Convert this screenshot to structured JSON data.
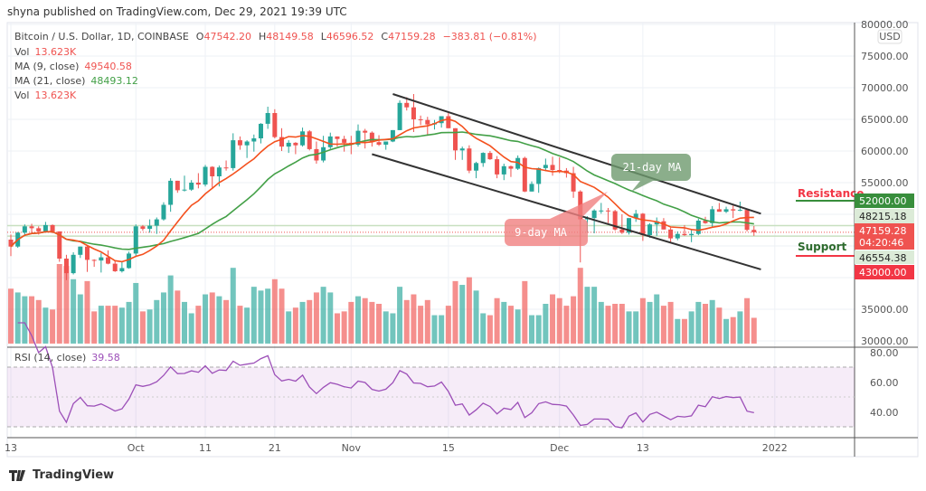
{
  "header": {
    "published": "shyna published on TradingView.com, Dec 29, 2021 19:39 UTC"
  },
  "legend": {
    "symbol": "Bitcoin / U.S. Dollar, 1D, COINBASE",
    "o_label": "O",
    "o": "47542.20",
    "h_label": "H",
    "h": "48149.58",
    "l_label": "L",
    "l": "46596.52",
    "c_label": "C",
    "c": "47159.28",
    "change": "−383.81 (−0.81%)",
    "vol_label": "Vol",
    "vol": "13.623K",
    "ma9_label": "MA (9, close)",
    "ma9": "49540.58",
    "ma21_label": "MA (21, close)",
    "ma21": "48493.12",
    "vol2_label": "Vol",
    "vol2": "13.623K",
    "rsi_label": "RSI (14, close)",
    "rsi": "39.58"
  },
  "annotations": {
    "ma21_callout": "21-day MA",
    "ma9_callout": "9-day MA",
    "resistance": "Resistance",
    "support": "Support"
  },
  "price_axis": {
    "currency": "USD",
    "ticks": [
      "80000.00",
      "75000.00",
      "70000.00",
      "65000.00",
      "60000.00",
      "55000.00",
      "35000.00",
      "30000.00"
    ],
    "badges": {
      "resistance": "52000.00",
      "upper_line": "48215.18",
      "last": "47159.28",
      "countdown": "04:20:46",
      "lower_line": "46554.38",
      "support": "43000.00"
    }
  },
  "rsi_axis": {
    "ticks": [
      "80.00",
      "60.00",
      "40.00"
    ]
  },
  "time_axis": {
    "ticks": [
      "13",
      "Oct",
      "11",
      "21",
      "Nov",
      "15",
      "Dec",
      "13",
      "2022"
    ]
  },
  "footer": {
    "brand": "TradingView"
  },
  "colors": {
    "up": "#26a69a",
    "down": "#ef5350",
    "ma9": "#f4511e",
    "ma21": "#43a047",
    "rsi": "#9c4fb8",
    "resistance_badge": "#388e3c",
    "support_badge": "#f23645"
  },
  "chart_data": {
    "type": "candlestick",
    "title": "Bitcoin / U.S. Dollar, 1D, COINBASE",
    "ylabel": "USD",
    "ylim": [
      30000,
      80000
    ],
    "grid": true,
    "levels": {
      "resistance": 52000,
      "support": 43000,
      "upper_line": 48215.18,
      "lower_line": 46554.38,
      "last": 47159.28
    },
    "columns": [
      "date",
      "open",
      "high",
      "low",
      "close",
      "volume_k"
    ],
    "candles": [
      [
        "Sep 13",
        46000,
        46800,
        43400,
        44900,
        29
      ],
      [
        "Sep 14",
        44900,
        47200,
        44700,
        47100,
        27
      ],
      [
        "Sep 15",
        47100,
        48400,
        46700,
        48100,
        25
      ],
      [
        "Sep 16",
        48100,
        48500,
        47000,
        47800,
        25
      ],
      [
        "Sep 17",
        47800,
        48100,
        46800,
        47300,
        23
      ],
      [
        "Sep 18",
        47300,
        48800,
        47100,
        48300,
        19
      ],
      [
        "Sep 19",
        48300,
        48400,
        47000,
        47300,
        18
      ],
      [
        "Sep 20",
        47300,
        47300,
        42500,
        43000,
        42
      ],
      [
        "Sep 21",
        43000,
        43600,
        39600,
        40700,
        41
      ],
      [
        "Sep 22",
        40700,
        44000,
        40500,
        43600,
        34
      ],
      [
        "Sep 23",
        43600,
        44900,
        43100,
        44900,
        26
      ],
      [
        "Sep 24",
        44900,
        45100,
        40900,
        42800,
        33
      ],
      [
        "Sep 25",
        42800,
        42900,
        41700,
        42700,
        17
      ],
      [
        "Sep 26",
        42700,
        43900,
        40800,
        43200,
        20
      ],
      [
        "Sep 27",
        43200,
        44300,
        42100,
        42200,
        20
      ],
      [
        "Sep 28",
        42200,
        42700,
        40900,
        41000,
        20
      ],
      [
        "Sep 29",
        41000,
        42600,
        40800,
        41500,
        19
      ],
      [
        "Sep 30",
        41500,
        44100,
        41400,
        43800,
        22
      ],
      [
        "Oct 1",
        43800,
        48400,
        43300,
        48100,
        32
      ],
      [
        "Oct 2",
        48100,
        48300,
        47400,
        47700,
        17
      ],
      [
        "Oct 3",
        47700,
        49200,
        47100,
        48200,
        18
      ],
      [
        "Oct 4",
        48200,
        49500,
        46900,
        49200,
        23
      ],
      [
        "Oct 5",
        49200,
        51900,
        49000,
        51500,
        27
      ],
      [
        "Oct 6",
        51500,
        55700,
        50400,
        55300,
        36
      ],
      [
        "Oct 7",
        55300,
        55300,
        53400,
        53800,
        28
      ],
      [
        "Oct 8",
        53800,
        56100,
        53600,
        53900,
        22
      ],
      [
        "Oct 9",
        53900,
        55400,
        53700,
        55000,
        16
      ],
      [
        "Oct 10",
        55000,
        56500,
        54100,
        54700,
        20
      ],
      [
        "Oct 11",
        54700,
        57800,
        54400,
        57500,
        26
      ],
      [
        "Oct 12",
        57500,
        57600,
        54000,
        56000,
        27
      ],
      [
        "Oct 13",
        56000,
        57700,
        54400,
        57400,
        25
      ],
      [
        "Oct 14",
        57400,
        58500,
        56900,
        57300,
        23
      ],
      [
        "Oct 15",
        57300,
        62800,
        56900,
        61700,
        40
      ],
      [
        "Oct 16",
        61700,
        62300,
        60200,
        60900,
        20
      ],
      [
        "Oct 17",
        60900,
        61700,
        58900,
        61500,
        19
      ],
      [
        "Oct 18",
        61500,
        62600,
        59900,
        62000,
        30
      ],
      [
        "Oct 19",
        62000,
        64400,
        61200,
        64300,
        28
      ],
      [
        "Oct 20",
        64300,
        67000,
        63500,
        66000,
        29
      ],
      [
        "Oct 21",
        66000,
        66600,
        62000,
        62200,
        34
      ],
      [
        "Oct 22",
        62200,
        63600,
        60000,
        60700,
        29
      ],
      [
        "Oct 23",
        60700,
        61700,
        59700,
        61300,
        17
      ],
      [
        "Oct 24",
        61300,
        61400,
        59500,
        60900,
        19
      ],
      [
        "Oct 25",
        60900,
        63700,
        60700,
        63100,
        22
      ],
      [
        "Oct 26",
        63100,
        63300,
        60100,
        60300,
        23
      ],
      [
        "Oct 27",
        60300,
        61500,
        58000,
        58500,
        27
      ],
      [
        "Oct 28",
        58500,
        62400,
        58200,
        60600,
        30
      ],
      [
        "Oct 29",
        60600,
        62900,
        60300,
        62300,
        27
      ],
      [
        "Oct 30",
        62300,
        62300,
        60700,
        61900,
        16
      ],
      [
        "Oct 31",
        61900,
        62400,
        59900,
        61300,
        17
      ],
      [
        "Nov 1",
        61300,
        62400,
        59500,
        61000,
        22
      ],
      [
        "Nov 2",
        61000,
        64200,
        60700,
        63200,
        25
      ],
      [
        "Nov 3",
        63200,
        63500,
        60400,
        62900,
        24
      ],
      [
        "Nov 4",
        62900,
        63100,
        60700,
        61400,
        22
      ],
      [
        "Nov 5",
        61400,
        62500,
        60800,
        61000,
        21
      ],
      [
        "Nov 6",
        61000,
        61500,
        60200,
        61500,
        17
      ],
      [
        "Nov 7",
        61500,
        63300,
        61400,
        63300,
        16
      ],
      [
        "Nov 8",
        63300,
        68000,
        63300,
        67600,
        30
      ],
      [
        "Nov 9",
        67600,
        68500,
        66400,
        66900,
        23
      ],
      [
        "Nov 10",
        66900,
        69000,
        63000,
        65000,
        26
      ],
      [
        "Nov 11",
        65000,
        65600,
        64100,
        64900,
        20
      ],
      [
        "Nov 12",
        64900,
        65400,
        62400,
        64200,
        23
      ],
      [
        "Nov 13",
        64200,
        64900,
        63400,
        64400,
        15
      ],
      [
        "Nov 14",
        64400,
        65400,
        63700,
        65500,
        15
      ],
      [
        "Nov 15",
        65500,
        66300,
        63600,
        63600,
        20
      ],
      [
        "Nov 16",
        63600,
        63600,
        58600,
        60100,
        33
      ],
      [
        "Nov 17",
        60100,
        60700,
        58600,
        60400,
        31
      ],
      [
        "Nov 18",
        60400,
        60900,
        56500,
        56900,
        35
      ],
      [
        "Nov 19",
        56900,
        58300,
        55700,
        58100,
        28
      ],
      [
        "Nov 20",
        58100,
        59800,
        57500,
        59700,
        16
      ],
      [
        "Nov 21",
        59700,
        60000,
        58600,
        58700,
        15
      ],
      [
        "Nov 22",
        58700,
        59200,
        55700,
        56300,
        24
      ],
      [
        "Nov 23",
        56300,
        58000,
        55400,
        57600,
        22
      ],
      [
        "Nov 24",
        57600,
        57700,
        55900,
        57200,
        20
      ],
      [
        "Nov 25",
        57200,
        59300,
        57000,
        58900,
        18
      ],
      [
        "Nov 26",
        58900,
        59100,
        53500,
        53600,
        33
      ],
      [
        "Nov 27",
        53600,
        55200,
        53600,
        54800,
        15
      ],
      [
        "Nov 28",
        54800,
        57400,
        53400,
        57300,
        15
      ],
      [
        "Nov 29",
        57300,
        58800,
        56800,
        57800,
        21
      ],
      [
        "Nov 30",
        57800,
        59100,
        56100,
        57000,
        26
      ],
      [
        "Dec 1",
        57000,
        59000,
        56500,
        56900,
        24
      ],
      [
        "Dec 2",
        56900,
        57300,
        55800,
        56500,
        20
      ],
      [
        "Dec 3",
        56500,
        57500,
        52600,
        53600,
        25
      ],
      [
        "Dec 4",
        53600,
        53800,
        42400,
        49200,
        40
      ],
      [
        "Dec 5",
        49200,
        49700,
        47100,
        49400,
        30
      ],
      [
        "Dec 6",
        49400,
        50800,
        47000,
        50600,
        30
      ],
      [
        "Dec 7",
        50600,
        51800,
        50100,
        50600,
        22
      ],
      [
        "Dec 8",
        50600,
        51000,
        48600,
        50500,
        20
      ],
      [
        "Dec 9",
        50500,
        50700,
        47400,
        47600,
        21
      ],
      [
        "Dec 10",
        47600,
        50000,
        46900,
        47100,
        21
      ],
      [
        "Dec 11",
        47100,
        49400,
        46800,
        49400,
        17
      ],
      [
        "Dec 12",
        49400,
        50700,
        48800,
        50100,
        17
      ],
      [
        "Dec 13",
        50100,
        50200,
        45800,
        46700,
        24
      ],
      [
        "Dec 14",
        46700,
        48600,
        46300,
        48400,
        22
      ],
      [
        "Dec 15",
        48400,
        49500,
        46600,
        48900,
        26
      ],
      [
        "Dec 16",
        48900,
        49400,
        47600,
        47600,
        20
      ],
      [
        "Dec 17",
        47600,
        47900,
        45500,
        46200,
        22
      ],
      [
        "Dec 18",
        46200,
        47300,
        45900,
        46900,
        13
      ],
      [
        "Dec 19",
        46900,
        48300,
        46600,
        46700,
        13
      ],
      [
        "Dec 20",
        46700,
        47500,
        45600,
        46900,
        17
      ],
      [
        "Dec 21",
        46900,
        49300,
        46700,
        49000,
        22
      ],
      [
        "Dec 22",
        49000,
        49600,
        48500,
        48600,
        21
      ],
      [
        "Dec 23",
        48600,
        51300,
        47900,
        50800,
        23
      ],
      [
        "Dec 24",
        50800,
        51800,
        50500,
        50400,
        19
      ],
      [
        "Dec 25",
        50400,
        51200,
        50200,
        50800,
        13
      ],
      [
        "Dec 26",
        50800,
        51400,
        49400,
        50600,
        14
      ],
      [
        "Dec 27",
        50600,
        52000,
        50500,
        50700,
        17
      ],
      [
        "Dec 28",
        50700,
        50700,
        47300,
        47542.2,
        24
      ],
      [
        "Dec 29",
        47542.2,
        48149.58,
        46596.52,
        47159.28,
        13.623
      ]
    ],
    "channel": {
      "upper": [
        [
          "Nov 7",
          69000
        ],
        [
          "Dec 30",
          50100
        ]
      ],
      "lower": [
        [
          "Nov 4",
          59500
        ],
        [
          "Dec 30",
          41300
        ]
      ]
    }
  }
}
